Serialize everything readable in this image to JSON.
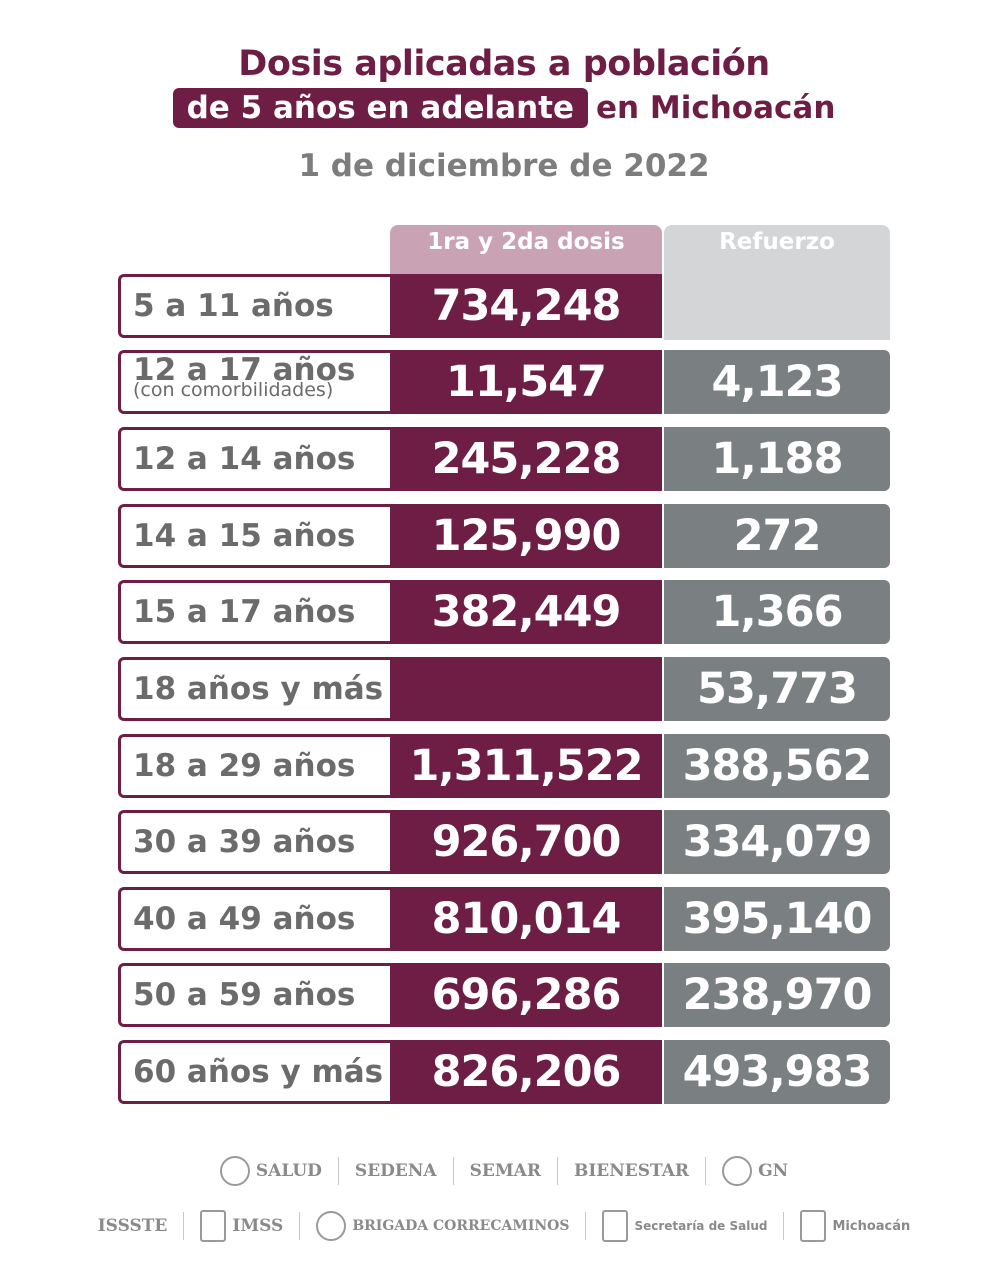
{
  "header": {
    "title_line1": "Dosis aplicadas a población",
    "title_line2_highlight": "de 5 años en adelante",
    "title_line2_rest": "en Michoacán",
    "date": "1 de diciembre de 2022"
  },
  "columns": {
    "first": "1ra y 2da dosis",
    "booster": "Refuerzo"
  },
  "rows": [
    {
      "label": "5 a 11 años",
      "sub": "",
      "dose": "734,248",
      "booster": ""
    },
    {
      "label": "12 a 17 años",
      "sub": "(con comorbilidades)",
      "dose": "11,547",
      "booster": "4,123"
    },
    {
      "label": "12 a 14 años",
      "sub": "",
      "dose": "245,228",
      "booster": "1,188"
    },
    {
      "label": "14 a 15 años",
      "sub": "",
      "dose": "125,990",
      "booster": "272"
    },
    {
      "label": "15 a 17 años",
      "sub": "",
      "dose": "382,449",
      "booster": "1,366"
    },
    {
      "label": "18 años y más",
      "sub": "",
      "dose": "",
      "booster": "53,773"
    },
    {
      "label": "18 a 29 años",
      "sub": "",
      "dose": "1,311,522",
      "booster": "388,562"
    },
    {
      "label": "30 a 39 años",
      "sub": "",
      "dose": "926,700",
      "booster": "334,079"
    },
    {
      "label": "40 a 49 años",
      "sub": "",
      "dose": "810,014",
      "booster": "395,140"
    },
    {
      "label": "50 a 59 años",
      "sub": "",
      "dose": "696,286",
      "booster": "238,970"
    },
    {
      "label": "60 años y más",
      "sub": "",
      "dose": "826,206",
      "booster": "493,983"
    }
  ],
  "footer": {
    "logos_row1": [
      "SALUD",
      "SEDENA",
      "SEMAR",
      "BIENESTAR",
      "GN"
    ],
    "logos_row2": [
      "ISSSTE",
      "IMSS",
      "BRIGADA CORRECAMINOS",
      "Secretaría de Salud",
      "Michoacán"
    ]
  },
  "colors": {
    "brand": "#6e1e44",
    "booster": "#7a7f82",
    "text_gray": "#6b6b6b"
  }
}
